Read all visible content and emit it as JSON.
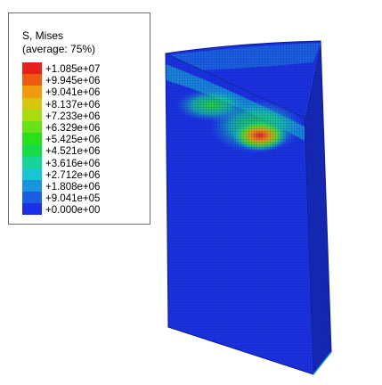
{
  "legend": {
    "title": "S, Mises",
    "subtitle": "(average: 75%)",
    "levels": [
      {
        "label": "+1.085e+07",
        "color": "#e8201a"
      },
      {
        "label": "+9.945e+06",
        "color": "#ee5a12"
      },
      {
        "label": "+9.041e+06",
        "color": "#f29a0e"
      },
      {
        "label": "+8.137e+06",
        "color": "#d7c60e"
      },
      {
        "label": "+7.233e+06",
        "color": "#a7dc12"
      },
      {
        "label": "+6.329e+06",
        "color": "#66e216"
      },
      {
        "label": "+5.425e+06",
        "color": "#27e11c"
      },
      {
        "label": "+4.521e+06",
        "color": "#18db4a"
      },
      {
        "label": "+3.616e+06",
        "color": "#16d497"
      },
      {
        "label": "+2.712e+06",
        "color": "#17c6d3"
      },
      {
        "label": "+1.808e+06",
        "color": "#1a94dc"
      },
      {
        "label": "+9.041e+05",
        "color": "#1c5ee3"
      },
      {
        "label": "+0.000e+00",
        "color": "#1a2fe6"
      }
    ]
  },
  "model": {
    "base_color": "#1a32e0",
    "mesh_color": "#0c1a8a",
    "max_stress_color": "#e8201a"
  }
}
